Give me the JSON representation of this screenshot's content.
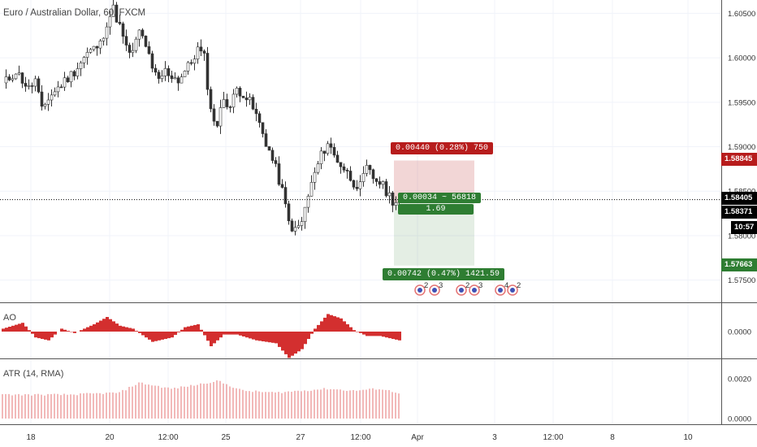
{
  "symbol_title": "Euro / Australian Dollar, 60, FXCM",
  "colors": {
    "up": "#333333",
    "down": "#333333",
    "profit": "#2e7d32",
    "loss": "#b71c1c",
    "ao": "#d32f2f",
    "atr": "#e57373",
    "current_price_bg": "#000000",
    "grid": "#f0f3fa"
  },
  "price_axis": {
    "ticks": [
      "1.60500",
      "1.60000",
      "1.59500",
      "1.59000",
      "1.58500",
      "1.58000",
      "1.57500"
    ]
  },
  "price_tags": {
    "stop": "1.58845",
    "current": "1.58405",
    "entry": "1.58371",
    "countdown": "10:57",
    "target": "1.57663"
  },
  "position": {
    "loss_label": "0.00440 (0.28%) 750",
    "info_line1": "0.00034 ~ 56818",
    "info_line2": "1.69",
    "profit_label": "0.00742 (0.47%) 1421.59"
  },
  "indicators": {
    "ao": {
      "name": "AO",
      "axis_label": "0.0000"
    },
    "atr": {
      "name": "ATR (14, RMA)",
      "axis_ticks": [
        "0.0020",
        "0.0000"
      ]
    }
  },
  "time_axis": {
    "labels": [
      "18",
      "20",
      "12:00",
      "25",
      "27",
      "12:00",
      "Apr",
      "3",
      "12:00",
      "8",
      "10"
    ]
  },
  "chart_data": {
    "type": "candlestick",
    "title": "Euro / Australian Dollar, 60, FXCM",
    "xlabel": "",
    "ylabel": "",
    "ylim": [
      1.5725,
      1.6065
    ],
    "x_tick_labels": [
      "18",
      "20",
      "12:00",
      "25",
      "27",
      "12:00",
      "Apr",
      "3",
      "12:00",
      "8",
      "10"
    ],
    "close_path": [
      [
        0,
        1.597
      ],
      [
        4,
        1.5985
      ],
      [
        8,
        1.5965
      ],
      [
        10,
        1.5975
      ],
      [
        12,
        1.594
      ],
      [
        14,
        1.5955
      ],
      [
        18,
        1.597
      ],
      [
        22,
        1.5985
      ],
      [
        26,
        1.6005
      ],
      [
        30,
        1.6015
      ],
      [
        32,
        1.604
      ],
      [
        34,
        1.6055
      ],
      [
        36,
        1.6035
      ],
      [
        38,
        1.601
      ],
      [
        40,
        1.6005
      ],
      [
        42,
        1.603
      ],
      [
        44,
        1.6015
      ],
      [
        46,
        1.5985
      ],
      [
        48,
        1.5975
      ],
      [
        50,
        1.5985
      ],
      [
        54,
        1.5975
      ],
      [
        58,
        1.5995
      ],
      [
        60,
        1.601
      ],
      [
        62,
        1.6
      ],
      [
        64,
        1.594
      ],
      [
        66,
        1.5925
      ],
      [
        68,
        1.5955
      ],
      [
        70,
        1.5945
      ],
      [
        72,
        1.5965
      ],
      [
        74,
        1.596
      ],
      [
        76,
        1.595
      ],
      [
        78,
        1.5935
      ],
      [
        80,
        1.5915
      ],
      [
        82,
        1.5895
      ],
      [
        84,
        1.5875
      ],
      [
        86,
        1.585
      ],
      [
        88,
        1.5815
      ],
      [
        90,
        1.5805
      ],
      [
        92,
        1.5815
      ],
      [
        94,
        1.5845
      ],
      [
        96,
        1.587
      ],
      [
        98,
        1.589
      ],
      [
        100,
        1.5905
      ],
      [
        102,
        1.589
      ],
      [
        104,
        1.588
      ],
      [
        106,
        1.587
      ],
      [
        108,
        1.586
      ],
      [
        110,
        1.5855
      ],
      [
        112,
        1.5875
      ],
      [
        114,
        1.5865
      ],
      [
        116,
        1.586
      ],
      [
        118,
        1.585
      ],
      [
        120,
        1.584
      ],
      [
        122,
        1.5837
      ]
    ],
    "position": {
      "entry": 1.58371,
      "stop": 1.58845,
      "target": 1.57663,
      "current": 1.58405
    },
    "ao_profile": [
      [
        0,
        0.2
      ],
      [
        6,
        0.6
      ],
      [
        10,
        -0.4
      ],
      [
        14,
        -0.6
      ],
      [
        18,
        0.2
      ],
      [
        22,
        -0.1
      ],
      [
        28,
        0.5
      ],
      [
        32,
        1.0
      ],
      [
        36,
        0.4
      ],
      [
        40,
        0.2
      ],
      [
        46,
        -0.7
      ],
      [
        52,
        -0.4
      ],
      [
        56,
        0.3
      ],
      [
        60,
        0.5
      ],
      [
        64,
        -1.0
      ],
      [
        68,
        -0.2
      ],
      [
        72,
        -0.2
      ],
      [
        78,
        -0.6
      ],
      [
        84,
        -0.8
      ],
      [
        88,
        -1.8
      ],
      [
        92,
        -1.2
      ],
      [
        96,
        0.2
      ],
      [
        100,
        1.2
      ],
      [
        104,
        0.9
      ],
      [
        108,
        0.1
      ],
      [
        112,
        -0.3
      ],
      [
        116,
        -0.3
      ],
      [
        120,
        -0.5
      ],
      [
        122,
        -0.6
      ]
    ],
    "atr_profile": [
      [
        0,
        0.0012
      ],
      [
        20,
        0.0012
      ],
      [
        36,
        0.0013
      ],
      [
        42,
        0.0018
      ],
      [
        52,
        0.0015
      ],
      [
        60,
        0.0017
      ],
      [
        66,
        0.0019
      ],
      [
        74,
        0.0014
      ],
      [
        84,
        0.0013
      ],
      [
        92,
        0.0014
      ],
      [
        100,
        0.0015
      ],
      [
        108,
        0.0014
      ],
      [
        116,
        0.0015
      ],
      [
        122,
        0.0013
      ]
    ],
    "event_markers": [
      "2",
      "3",
      "2",
      "3",
      "4",
      "2"
    ]
  }
}
